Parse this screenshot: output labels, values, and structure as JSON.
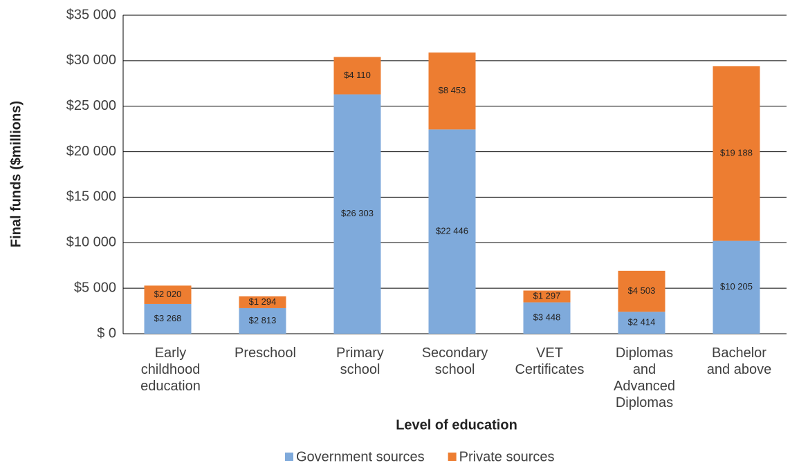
{
  "chart_data": {
    "type": "stacked_bar",
    "x_label": "Level of education",
    "y_label": "Final funds ($millions)",
    "categories": [
      "Early\nchildhood\neducation",
      "Preschool",
      "Primary\nschool",
      "Secondary\nschool",
      "VET\nCertificates",
      "Diplomas\nand\nAdvanced\nDiplomas",
      "Bachelor\nand above"
    ],
    "series": [
      {
        "name": "Government sources",
        "color": "#7faadb",
        "values": [
          3268,
          2813,
          26303,
          22446,
          3448,
          2414,
          10205
        ],
        "value_labels": [
          "$3 268",
          "$2 813",
          "$26 303",
          "$22 446",
          "$3 448",
          "$2 414",
          "$10 205"
        ]
      },
      {
        "name": "Private sources",
        "color": "#ed7d31",
        "values": [
          2020,
          1294,
          4110,
          8453,
          1297,
          4503,
          19188
        ],
        "value_labels": [
          "$2 020",
          "$1 294",
          "$4 110",
          "$8 453",
          "$1 297",
          "$4 503",
          "$19 188"
        ]
      }
    ],
    "ylim": [
      0,
      35000
    ],
    "yticks": [
      {
        "value": 0,
        "label": "$ 0"
      },
      {
        "value": 5000,
        "label": "$5 000"
      },
      {
        "value": 10000,
        "label": "$10 000"
      },
      {
        "value": 15000,
        "label": "$15 000"
      },
      {
        "value": 20000,
        "label": "$20 000"
      },
      {
        "value": 25000,
        "label": "$25 000"
      },
      {
        "value": 30000,
        "label": "$30 000"
      },
      {
        "value": 35000,
        "label": "$35 000"
      }
    ],
    "grid": true,
    "legend": "bottom"
  }
}
